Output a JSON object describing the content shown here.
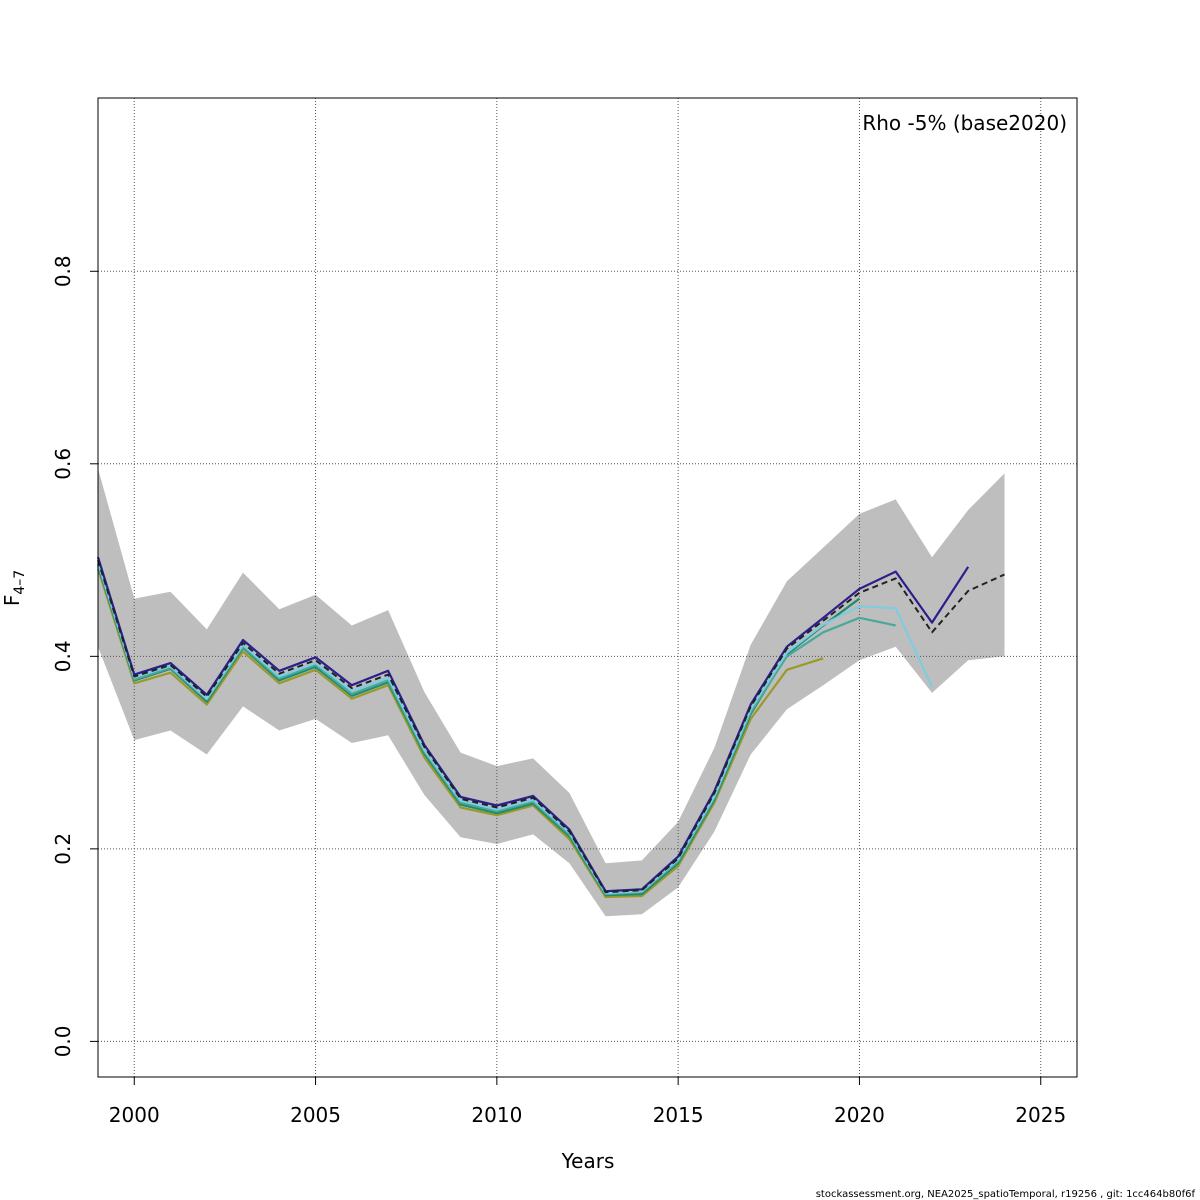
{
  "chart_data": {
    "type": "line",
    "legend_text": "Rho -5% (base2020)",
    "legend_position": "top-right",
    "xlabel": "Years",
    "ylabel_main": "F",
    "ylabel_sub": "4–7",
    "xlim": [
      1999,
      2026
    ],
    "ylim": [
      -0.037,
      0.98
    ],
    "x_ticks": [
      2000,
      2005,
      2010,
      2015,
      2020,
      2025
    ],
    "y_ticks": [
      0.0,
      0.2,
      0.4,
      0.6,
      0.8
    ],
    "x_tick_labels": [
      "2000",
      "2005",
      "2010",
      "2015",
      "2020",
      "2025"
    ],
    "y_tick_labels": [
      "0.0",
      "0.2",
      "0.4",
      "0.6",
      "0.8"
    ],
    "grid": true,
    "footer": "stockassessment.org, NEA2025_spatioTemporal, r19256 , git: 1cc464b80f6f",
    "confidence_band": {
      "color": "#bebebe",
      "x": [
        1999,
        2000,
        2001,
        2002,
        2003,
        2004,
        2005,
        2006,
        2007,
        2008,
        2009,
        2010,
        2011,
        2012,
        2013,
        2014,
        2015,
        2016,
        2017,
        2018,
        2019,
        2020,
        2021,
        2022,
        2023,
        2024
      ],
      "upper": [
        0.595,
        0.46,
        0.467,
        0.428,
        0.487,
        0.449,
        0.464,
        0.432,
        0.448,
        0.363,
        0.3,
        0.286,
        0.294,
        0.258,
        0.185,
        0.188,
        0.228,
        0.305,
        0.412,
        0.478,
        0.513,
        0.548,
        0.563,
        0.503,
        0.552,
        0.59
      ],
      "lower": [
        0.41,
        0.313,
        0.323,
        0.298,
        0.348,
        0.323,
        0.335,
        0.31,
        0.318,
        0.256,
        0.212,
        0.205,
        0.215,
        0.185,
        0.13,
        0.132,
        0.16,
        0.218,
        0.298,
        0.345,
        0.37,
        0.396,
        0.41,
        0.362,
        0.396,
        0.4
      ]
    },
    "series": [
      {
        "color": "#9a9a2a",
        "x": [
          1999,
          2000,
          2001,
          2002,
          2003,
          2004,
          2005,
          2006,
          2007,
          2008,
          2009,
          2010,
          2011,
          2012,
          2013,
          2014,
          2015,
          2016,
          2017,
          2018,
          2019
        ],
        "values": [
          0.491,
          0.372,
          0.383,
          0.35,
          0.405,
          0.372,
          0.386,
          0.356,
          0.37,
          0.295,
          0.243,
          0.235,
          0.245,
          0.21,
          0.15,
          0.151,
          0.182,
          0.248,
          0.335,
          0.386,
          0.398
        ]
      },
      {
        "color": "#1e8a6e",
        "x": [
          1999,
          2000,
          2001,
          2002,
          2003,
          2004,
          2005,
          2006,
          2007,
          2008,
          2009,
          2010,
          2011,
          2012,
          2013,
          2014,
          2015,
          2016,
          2017,
          2018,
          2019,
          2020
        ],
        "values": [
          0.494,
          0.375,
          0.387,
          0.353,
          0.409,
          0.375,
          0.389,
          0.359,
          0.373,
          0.299,
          0.246,
          0.237,
          0.247,
          0.213,
          0.152,
          0.153,
          0.185,
          0.251,
          0.34,
          0.402,
          0.432,
          0.46
        ]
      },
      {
        "color": "#4aa89a",
        "x": [
          1999,
          2000,
          2001,
          2002,
          2003,
          2004,
          2005,
          2006,
          2007,
          2008,
          2009,
          2010,
          2011,
          2012,
          2013,
          2014,
          2015,
          2016,
          2017,
          2018,
          2019,
          2020,
          2021
        ],
        "values": [
          0.496,
          0.376,
          0.388,
          0.355,
          0.41,
          0.377,
          0.391,
          0.361,
          0.375,
          0.301,
          0.248,
          0.239,
          0.249,
          0.215,
          0.153,
          0.155,
          0.187,
          0.253,
          0.342,
          0.4,
          0.425,
          0.44,
          0.432
        ]
      },
      {
        "color": "#7ecce0",
        "x": [
          1999,
          2000,
          2001,
          2002,
          2003,
          2004,
          2005,
          2006,
          2007,
          2008,
          2009,
          2010,
          2011,
          2012,
          2013,
          2014,
          2015,
          2016,
          2017,
          2018,
          2019,
          2020,
          2021,
          2022
        ],
        "values": [
          0.498,
          0.378,
          0.39,
          0.356,
          0.412,
          0.379,
          0.393,
          0.364,
          0.378,
          0.303,
          0.25,
          0.241,
          0.251,
          0.217,
          0.154,
          0.156,
          0.189,
          0.255,
          0.345,
          0.404,
          0.433,
          0.452,
          0.45,
          0.368
        ]
      },
      {
        "color": "#2a1f8c",
        "x": [
          1999,
          2000,
          2001,
          2002,
          2003,
          2004,
          2005,
          2006,
          2007,
          2008,
          2009,
          2010,
          2011,
          2012,
          2013,
          2014,
          2015,
          2016,
          2017,
          2018,
          2019,
          2020,
          2021,
          2022,
          2023
        ],
        "values": [
          0.503,
          0.381,
          0.393,
          0.36,
          0.417,
          0.385,
          0.399,
          0.37,
          0.385,
          0.308,
          0.254,
          0.245,
          0.255,
          0.22,
          0.156,
          0.158,
          0.192,
          0.26,
          0.35,
          0.41,
          0.44,
          0.47,
          0.488,
          0.435,
          0.493
        ]
      },
      {
        "color": "#222222",
        "dashed": true,
        "x": [
          1999,
          2000,
          2001,
          2002,
          2003,
          2004,
          2005,
          2006,
          2007,
          2008,
          2009,
          2010,
          2011,
          2012,
          2013,
          2014,
          2015,
          2016,
          2017,
          2018,
          2019,
          2020,
          2021,
          2022,
          2023,
          2024
        ],
        "values": [
          0.5,
          0.379,
          0.391,
          0.358,
          0.414,
          0.382,
          0.396,
          0.367,
          0.381,
          0.306,
          0.252,
          0.243,
          0.253,
          0.218,
          0.155,
          0.157,
          0.19,
          0.258,
          0.348,
          0.408,
          0.437,
          0.466,
          0.481,
          0.425,
          0.468,
          0.485
        ]
      }
    ]
  }
}
